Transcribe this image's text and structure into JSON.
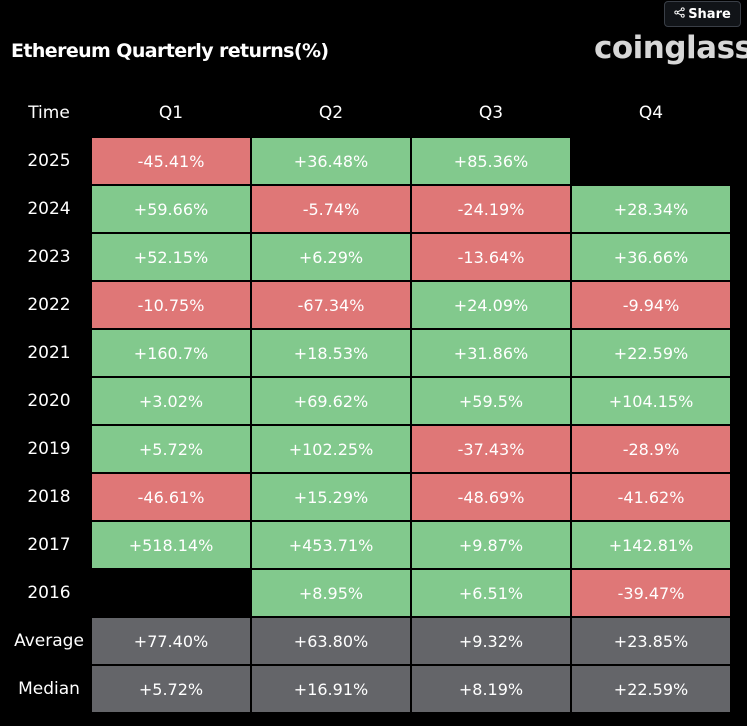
{
  "header": {
    "title": "Ethereum Quarterly returns(%)",
    "logo_text": "coinglass",
    "share_label": "Share",
    "share_icon": "share-icon"
  },
  "colors": {
    "background": "#000000",
    "positive": "#82c98d",
    "negative": "#df7777",
    "summary": "#646569"
  },
  "chart_data": {
    "type": "table",
    "title": "Ethereum Quarterly returns(%)",
    "corner_label": "Time",
    "columns": [
      "Q1",
      "Q2",
      "Q3",
      "Q4"
    ],
    "rows": [
      {
        "label": "2025",
        "values": [
          "-45.41%",
          "+36.48%",
          "+85.36%",
          ""
        ]
      },
      {
        "label": "2024",
        "values": [
          "+59.66%",
          "-5.74%",
          "-24.19%",
          "+28.34%"
        ]
      },
      {
        "label": "2023",
        "values": [
          "+52.15%",
          "+6.29%",
          "-13.64%",
          "+36.66%"
        ]
      },
      {
        "label": "2022",
        "values": [
          "-10.75%",
          "-67.34%",
          "+24.09%",
          "-9.94%"
        ]
      },
      {
        "label": "2021",
        "values": [
          "+160.7%",
          "+18.53%",
          "+31.86%",
          "+22.59%"
        ]
      },
      {
        "label": "2020",
        "values": [
          "+3.02%",
          "+69.62%",
          "+59.5%",
          "+104.15%"
        ]
      },
      {
        "label": "2019",
        "values": [
          "+5.72%",
          "+102.25%",
          "-37.43%",
          "-28.9%"
        ]
      },
      {
        "label": "2018",
        "values": [
          "-46.61%",
          "+15.29%",
          "-48.69%",
          "-41.62%"
        ]
      },
      {
        "label": "2017",
        "values": [
          "+518.14%",
          "+453.71%",
          "+9.87%",
          "+142.81%"
        ]
      },
      {
        "label": "2016",
        "values": [
          "",
          "+8.95%",
          "+6.51%",
          "-39.47%"
        ]
      }
    ],
    "summary_rows": [
      {
        "label": "Average",
        "values": [
          "+77.40%",
          "+63.80%",
          "+9.32%",
          "+23.85%"
        ]
      },
      {
        "label": "Median",
        "values": [
          "+5.72%",
          "+16.91%",
          "+8.19%",
          "+22.59%"
        ]
      }
    ]
  }
}
